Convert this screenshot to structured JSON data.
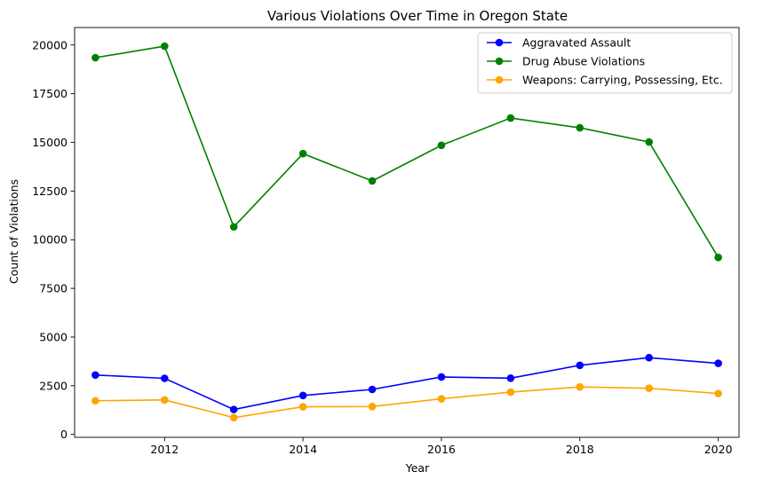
{
  "chart_data": {
    "type": "line",
    "title": "Various Violations Over Time in Oregon State",
    "xlabel": "Year",
    "ylabel": "Count of Violations",
    "x": [
      2011,
      2012,
      2013,
      2014,
      2015,
      2016,
      2017,
      2018,
      2019,
      2020
    ],
    "xlim": [
      2010.7,
      2020.3
    ],
    "ylim": [
      -150,
      20900
    ],
    "xticks": [
      2012,
      2014,
      2016,
      2018,
      2020
    ],
    "yticks": [
      0,
      2500,
      5000,
      7500,
      10000,
      12500,
      15000,
      17500,
      20000
    ],
    "grid": false,
    "legend_position": "upper right",
    "series": [
      {
        "name": "Aggravated Assault",
        "color": "#0000ff",
        "values": [
          3050,
          2880,
          1280,
          2000,
          2310,
          2950,
          2890,
          3550,
          3940,
          3650
        ]
      },
      {
        "name": "Drug Abuse Violations",
        "color": "#008000",
        "values": [
          19350,
          19940,
          10660,
          14420,
          13020,
          14850,
          16250,
          15750,
          15020,
          9090
        ]
      },
      {
        "name": "Weapons: Carrying, Possessing, Etc.",
        "color": "#ffa500",
        "values": [
          1730,
          1770,
          860,
          1420,
          1430,
          1830,
          2170,
          2440,
          2370,
          2100
        ]
      }
    ]
  }
}
